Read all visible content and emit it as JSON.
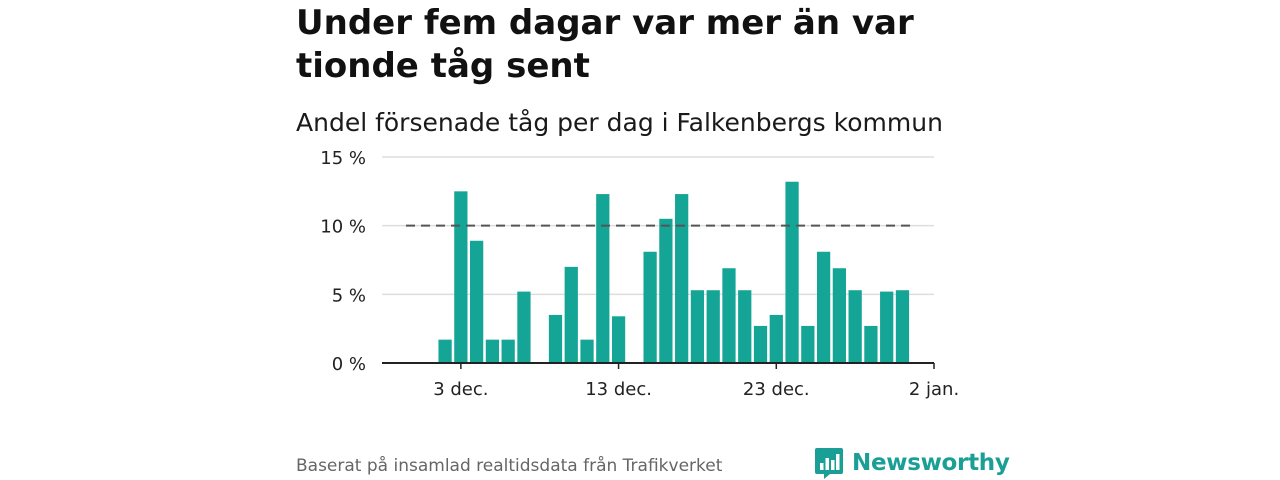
{
  "headline": "Under fem dagar var mer än var tionde tåg sent",
  "subtitle": "Andel försenade tåg per dag i Falkenbergs kommun",
  "footer": "Baserat på insamlad realtidsdata från Trafikverket",
  "brand": {
    "name": "Newsworthy",
    "icon": "newsworthy-chart-bubble-icon",
    "color": "#1a9f97"
  },
  "colors": {
    "bar": "#14a596",
    "threshold": "#555555",
    "grid": "#dddddd",
    "axis": "#222222"
  },
  "chart_data": {
    "type": "bar",
    "title": "Andel försenade tåg per dag i Falkenbergs kommun",
    "xlabel": "",
    "ylabel": "",
    "ylim": [
      0,
      15
    ],
    "yticks": [
      0,
      5,
      10,
      15
    ],
    "ytick_labels": [
      "0 %",
      "5 %",
      "10 %",
      "15 %"
    ],
    "xticks": [
      "2023-12-03",
      "2023-12-13",
      "2023-12-23",
      "2024-01-02"
    ],
    "xtick_labels": [
      "3 dec.",
      "13 dec.",
      "23 dec.",
      "2 jan."
    ],
    "xlim": [
      "2023-11-28",
      "2024-01-02"
    ],
    "threshold": 10,
    "grid": true,
    "bars": [
      {
        "date": "2023-12-02",
        "value": 1.7
      },
      {
        "date": "2023-12-03",
        "value": 12.5
      },
      {
        "date": "2023-12-04",
        "value": 8.9
      },
      {
        "date": "2023-12-05",
        "value": 1.7
      },
      {
        "date": "2023-12-06",
        "value": 1.7
      },
      {
        "date": "2023-12-07",
        "value": 5.2
      },
      {
        "date": "2023-12-08",
        "value": null
      },
      {
        "date": "2023-12-09",
        "value": 3.5
      },
      {
        "date": "2023-12-10",
        "value": 7.0
      },
      {
        "date": "2023-12-11",
        "value": 1.7
      },
      {
        "date": "2023-12-12",
        "value": 12.3
      },
      {
        "date": "2023-12-13",
        "value": 3.4
      },
      {
        "date": "2023-12-14",
        "value": null
      },
      {
        "date": "2023-12-15",
        "value": 8.1
      },
      {
        "date": "2023-12-16",
        "value": 10.5
      },
      {
        "date": "2023-12-17",
        "value": 12.3
      },
      {
        "date": "2023-12-18",
        "value": 5.3
      },
      {
        "date": "2023-12-19",
        "value": 5.3
      },
      {
        "date": "2023-12-20",
        "value": 6.9
      },
      {
        "date": "2023-12-21",
        "value": 5.3
      },
      {
        "date": "2023-12-22",
        "value": 2.7
      },
      {
        "date": "2023-12-23",
        "value": 3.5
      },
      {
        "date": "2023-12-24",
        "value": 13.2
      },
      {
        "date": "2023-12-25",
        "value": 2.7
      },
      {
        "date": "2023-12-26",
        "value": 8.1
      },
      {
        "date": "2023-12-27",
        "value": 6.9
      },
      {
        "date": "2023-12-28",
        "value": 5.3
      },
      {
        "date": "2023-12-29",
        "value": 2.7
      },
      {
        "date": "2023-12-30",
        "value": 5.2
      },
      {
        "date": "2023-12-31",
        "value": 5.3
      }
    ]
  }
}
